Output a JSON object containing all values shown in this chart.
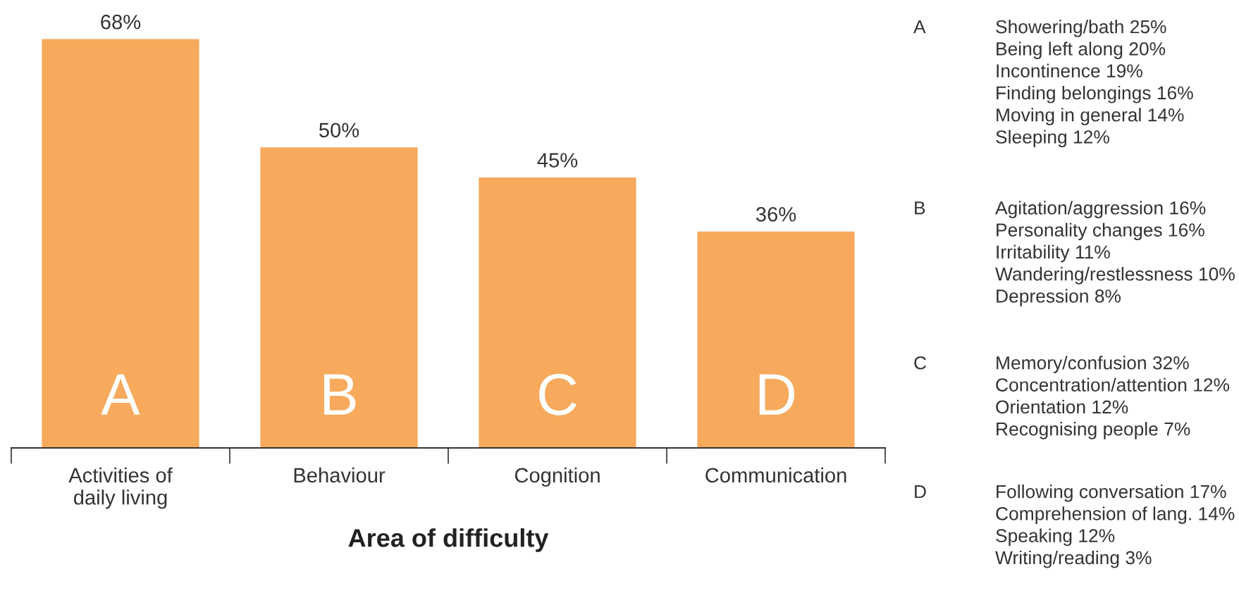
{
  "chart_data": {
    "type": "bar",
    "xlabel": "Area of difficulty",
    "categories": [
      "Activities of\ndaily living",
      "Behaviour",
      "Cognition",
      "Communication"
    ],
    "values": [
      68,
      50,
      45,
      36
    ],
    "value_labels": [
      "68%",
      "50%",
      "45%",
      "36%"
    ],
    "color": "#f7a95c",
    "grid": false,
    "legend": false,
    "annotations": [
      "A",
      "B",
      "C",
      "D",
      "A",
      "Showering/bath 25%\nBeing left along 20%\nIncontinence 19%\nFinding belongings 16%\nMoving in general 14%\nSleeping 12%",
      "B",
      "Agitation/aggression 16%\nPersonality changes 16%\nIrritability 11%\nWandering/restlessness 10%\nDepression 8%",
      "C",
      "Memory/confusion 32%\nConcentration/attention 12%\nOrientation 12%\nRecognising people 7%",
      "D",
      "Following conversation 17%\nComprehension of lang. 14%\nSpeaking 12%\nWriting/reading 3%"
    ]
  }
}
